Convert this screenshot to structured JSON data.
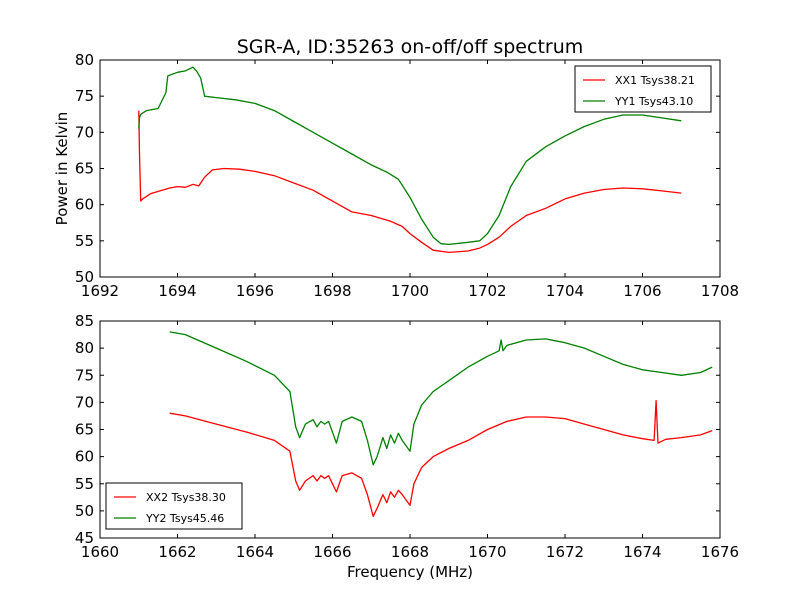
{
  "figure": {
    "title": "SGR-A, ID:35263 on-off/off spectrum"
  },
  "chart_data": [
    {
      "type": "line",
      "title": "SGR-A, ID:35263 on-off/off spectrum",
      "xlabel": "",
      "ylabel": "Power in Kelvin",
      "xlim": [
        1692,
        1708
      ],
      "ylim": [
        50,
        80
      ],
      "xticks": [
        1692,
        1694,
        1696,
        1698,
        1700,
        1702,
        1704,
        1706,
        1708
      ],
      "yticks": [
        50,
        55,
        60,
        65,
        70,
        75,
        80
      ],
      "grid": false,
      "legend": "top-right",
      "series": [
        {
          "name": "XX1 Tsys38.21",
          "color": "#ff0000",
          "x": [
            1693.0,
            1693.02,
            1693.05,
            1693.1,
            1693.3,
            1693.6,
            1693.8,
            1694.0,
            1694.2,
            1694.4,
            1694.55,
            1694.7,
            1694.9,
            1695.2,
            1695.6,
            1696.0,
            1696.5,
            1697.0,
            1697.5,
            1698.0,
            1698.5,
            1699.0,
            1699.5,
            1699.8,
            1700.0,
            1700.3,
            1700.6,
            1701.0,
            1701.5,
            1701.8,
            1702.0,
            1702.3,
            1702.6,
            1703.0,
            1703.5,
            1704.0,
            1704.5,
            1705.0,
            1705.5,
            1706.0,
            1706.5,
            1707.0
          ],
          "y": [
            73.0,
            67.0,
            60.5,
            60.8,
            61.5,
            62.0,
            62.3,
            62.5,
            62.4,
            62.8,
            62.6,
            63.8,
            64.8,
            65.0,
            64.9,
            64.6,
            64.0,
            63.0,
            62.0,
            60.5,
            59.0,
            58.5,
            57.7,
            57.0,
            56.0,
            54.8,
            53.7,
            53.4,
            53.6,
            54.0,
            54.5,
            55.5,
            57.0,
            58.5,
            59.5,
            60.8,
            61.6,
            62.1,
            62.3,
            62.2,
            61.9,
            61.6
          ]
        },
        {
          "name": "YY1 Tsys43.10",
          "color": "#008000",
          "x": [
            1693.0,
            1693.02,
            1693.05,
            1693.2,
            1693.5,
            1693.7,
            1693.75,
            1694.0,
            1694.2,
            1694.4,
            1694.5,
            1694.6,
            1694.7,
            1695.0,
            1695.5,
            1696.0,
            1696.5,
            1697.0,
            1697.5,
            1698.0,
            1698.5,
            1699.0,
            1699.4,
            1699.7,
            1700.0,
            1700.3,
            1700.6,
            1700.8,
            1701.0,
            1701.5,
            1701.8,
            1702.0,
            1702.3,
            1702.6,
            1703.0,
            1703.5,
            1704.0,
            1704.5,
            1705.0,
            1705.5,
            1706.0,
            1706.5,
            1707.0
          ],
          "y": [
            70.5,
            72.0,
            72.5,
            73.0,
            73.3,
            75.5,
            77.8,
            78.3,
            78.5,
            79.0,
            78.4,
            77.5,
            75.0,
            74.8,
            74.5,
            74.0,
            73.0,
            71.5,
            70.0,
            68.5,
            67.0,
            65.5,
            64.5,
            63.5,
            61.0,
            58.0,
            55.5,
            54.6,
            54.5,
            54.8,
            55.0,
            56.0,
            58.5,
            62.5,
            66.0,
            68.0,
            69.5,
            70.8,
            71.8,
            72.4,
            72.4,
            72.0,
            71.6
          ]
        }
      ]
    },
    {
      "type": "line",
      "title": "",
      "xlabel": "Frequency (MHz)",
      "ylabel": "",
      "xlim": [
        1660,
        1676
      ],
      "ylim": [
        45,
        85
      ],
      "xticks": [
        1660,
        1662,
        1664,
        1666,
        1668,
        1670,
        1672,
        1674,
        1676
      ],
      "yticks": [
        45,
        50,
        55,
        60,
        65,
        70,
        75,
        80,
        85
      ],
      "grid": false,
      "legend": "bottom-left",
      "series": [
        {
          "name": "XX2 Tsys38.30",
          "color": "#ff0000",
          "x": [
            1661.8,
            1662.2,
            1663.0,
            1663.8,
            1664.5,
            1664.9,
            1665.05,
            1665.15,
            1665.3,
            1665.5,
            1665.6,
            1665.7,
            1665.8,
            1665.9,
            1666.0,
            1666.1,
            1666.25,
            1666.5,
            1666.75,
            1666.9,
            1667.05,
            1667.15,
            1667.3,
            1667.4,
            1667.5,
            1667.6,
            1667.7,
            1667.8,
            1667.9,
            1668.0,
            1668.1,
            1668.3,
            1668.6,
            1669.0,
            1669.5,
            1670.0,
            1670.5,
            1671.0,
            1671.5,
            1672.0,
            1672.5,
            1673.0,
            1673.5,
            1674.0,
            1674.3,
            1674.35,
            1674.4,
            1674.6,
            1675.0,
            1675.5,
            1675.8
          ],
          "y": [
            68.0,
            67.5,
            66.0,
            64.5,
            63.0,
            61.0,
            55.5,
            53.8,
            55.5,
            56.5,
            55.5,
            56.5,
            56.0,
            56.5,
            55.0,
            53.5,
            56.5,
            57.0,
            56.0,
            53.0,
            49.0,
            50.5,
            53.0,
            51.5,
            53.5,
            52.5,
            53.8,
            53.0,
            52.0,
            51.0,
            55.0,
            58.0,
            60.0,
            61.5,
            63.0,
            65.0,
            66.5,
            67.3,
            67.3,
            67.0,
            66.0,
            65.0,
            64.0,
            63.3,
            63.0,
            70.3,
            62.5,
            63.2,
            63.5,
            64.0,
            64.8
          ]
        },
        {
          "name": "YY2 Tsys45.46",
          "color": "#008000",
          "x": [
            1661.8,
            1662.2,
            1663.0,
            1663.8,
            1664.5,
            1664.9,
            1665.05,
            1665.15,
            1665.3,
            1665.5,
            1665.6,
            1665.7,
            1665.8,
            1665.9,
            1666.0,
            1666.1,
            1666.25,
            1666.5,
            1666.75,
            1666.9,
            1667.05,
            1667.15,
            1667.3,
            1667.4,
            1667.5,
            1667.6,
            1667.7,
            1667.8,
            1667.9,
            1668.0,
            1668.1,
            1668.3,
            1668.6,
            1669.0,
            1669.5,
            1670.0,
            1670.3,
            1670.35,
            1670.4,
            1670.5,
            1671.0,
            1671.5,
            1672.0,
            1672.5,
            1673.0,
            1673.5,
            1674.0,
            1674.5,
            1675.0,
            1675.5,
            1675.8
          ],
          "y": [
            83.0,
            82.5,
            80.0,
            77.5,
            75.0,
            72.0,
            65.5,
            63.5,
            66.0,
            66.8,
            65.5,
            66.5,
            66.0,
            66.5,
            64.5,
            62.5,
            66.5,
            67.3,
            66.5,
            63.0,
            58.5,
            60.0,
            63.5,
            61.5,
            64.0,
            62.5,
            64.3,
            63.0,
            62.0,
            61.0,
            66.0,
            69.5,
            72.0,
            74.0,
            76.5,
            78.5,
            79.5,
            81.5,
            79.5,
            80.5,
            81.5,
            81.7,
            81.0,
            80.0,
            78.5,
            77.0,
            76.0,
            75.5,
            75.0,
            75.5,
            76.5
          ]
        }
      ]
    }
  ]
}
